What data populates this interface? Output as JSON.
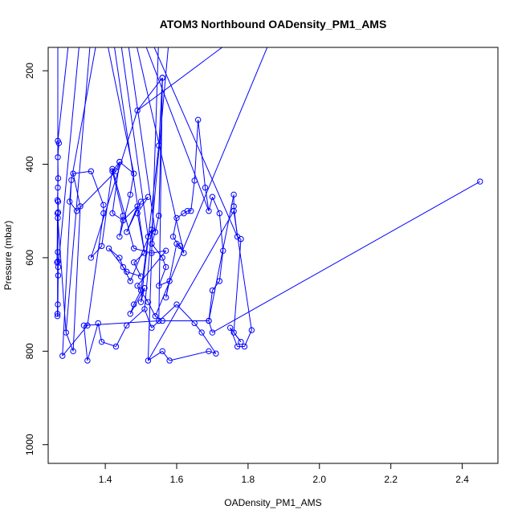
{
  "chart_data": {
    "type": "scatter",
    "title": "ATOM3 Northbound OADensity_PM1_AMS",
    "xlabel": "OADensity_PM1_AMS",
    "ylabel": "Pressure (mbar)",
    "xlim": [
      1.24,
      2.5
    ],
    "ylim": [
      1040,
      150
    ],
    "y_reversed": true,
    "x_ticks": [
      1.4,
      1.6,
      1.8,
      2.0,
      2.2,
      2.4
    ],
    "x_tick_labels": [
      "1.4",
      "1.6",
      "1.8",
      "2.0",
      "2.2",
      "2.4"
    ],
    "y_ticks": [
      200,
      400,
      600,
      800,
      1000
    ],
    "y_tick_labels": [
      "200",
      "400",
      "600",
      "800",
      "1000"
    ],
    "grid": false,
    "legend": "none",
    "series": [
      {
        "color": "#0000ff",
        "marker": "open-circle",
        "connect_lines": true,
        "x": [
          1.267,
          1.27,
          1.267,
          1.268,
          1.267,
          1.266,
          1.268,
          1.267,
          1.267,
          1.268,
          1.268,
          1.267,
          1.266,
          1.266,
          1.267,
          1.268,
          1.265,
          1.266,
          1.29,
          1.31,
          1.33,
          1.31,
          1.36,
          1.395,
          1.395,
          1.35,
          1.28,
          1.305,
          1.3,
          1.32,
          1.43,
          1.44,
          1.42,
          1.45,
          1.44,
          1.47,
          1.48,
          1.44,
          1.42,
          1.45,
          1.49,
          1.46,
          1.5,
          1.52,
          1.49,
          1.51,
          1.48,
          1.5,
          1.46,
          1.41,
          1.44,
          1.45,
          1.47,
          1.53,
          1.52,
          1.5,
          1.48,
          1.47,
          1.51,
          1.5,
          1.55,
          1.56,
          1.55,
          1.54,
          1.53,
          1.56,
          1.57,
          1.55,
          1.58,
          1.57,
          1.6,
          1.61,
          1.62,
          1.59,
          1.6,
          1.62,
          1.63,
          1.64,
          1.65,
          1.66,
          1.68,
          1.69,
          1.7,
          1.72,
          1.73,
          1.72,
          1.7,
          1.69,
          1.76,
          1.76,
          1.77,
          1.78,
          1.76,
          1.78,
          1.75,
          1.77,
          1.79,
          1.81,
          1.76,
          1.52,
          1.56,
          1.58,
          1.69,
          1.71,
          1.67,
          1.65,
          1.6,
          1.53,
          1.51,
          1.46,
          1.43,
          1.39,
          1.38,
          1.35,
          1.34,
          1.55,
          1.56,
          1.49,
          1.36,
          1.39,
          1.42,
          1.48,
          1.53,
          1.57,
          1.49,
          1.52,
          1.54,
          1.56,
          1.69,
          1.7,
          2.45
        ],
        "y": [
          350,
          355,
          385,
          430,
          450,
          477,
          503,
          588,
          608,
          620,
          638,
          700,
          720,
          725,
          515,
          480,
          610,
          505,
          760,
          800,
          490,
          420,
          415,
          487,
          505,
          745,
          810,
          434,
          480,
          500,
          415,
          395,
          415,
          510,
          555,
          465,
          420,
          395,
          505,
          520,
          490,
          545,
          480,
          470,
          505,
          590,
          610,
          640,
          630,
          580,
          600,
          620,
          650,
          540,
          555,
          670,
          700,
          720,
          665,
          695,
          360,
          215,
          510,
          545,
          570,
          600,
          620,
          660,
          650,
          685,
          570,
          575,
          590,
          555,
          515,
          505,
          500,
          500,
          435,
          305,
          450,
          500,
          470,
          505,
          585,
          650,
          670,
          735,
          465,
          490,
          555,
          560,
          760,
          780,
          750,
          790,
          790,
          755,
          500,
          820,
          800,
          820,
          800,
          805,
          760,
          740,
          700,
          750,
          710,
          745,
          790,
          780,
          740,
          820,
          745,
          735,
          215,
          285,
          600,
          575,
          410,
          580,
          590,
          585,
          660,
          695,
          725,
          735,
          735,
          760,
          437
        ]
      }
    ]
  }
}
